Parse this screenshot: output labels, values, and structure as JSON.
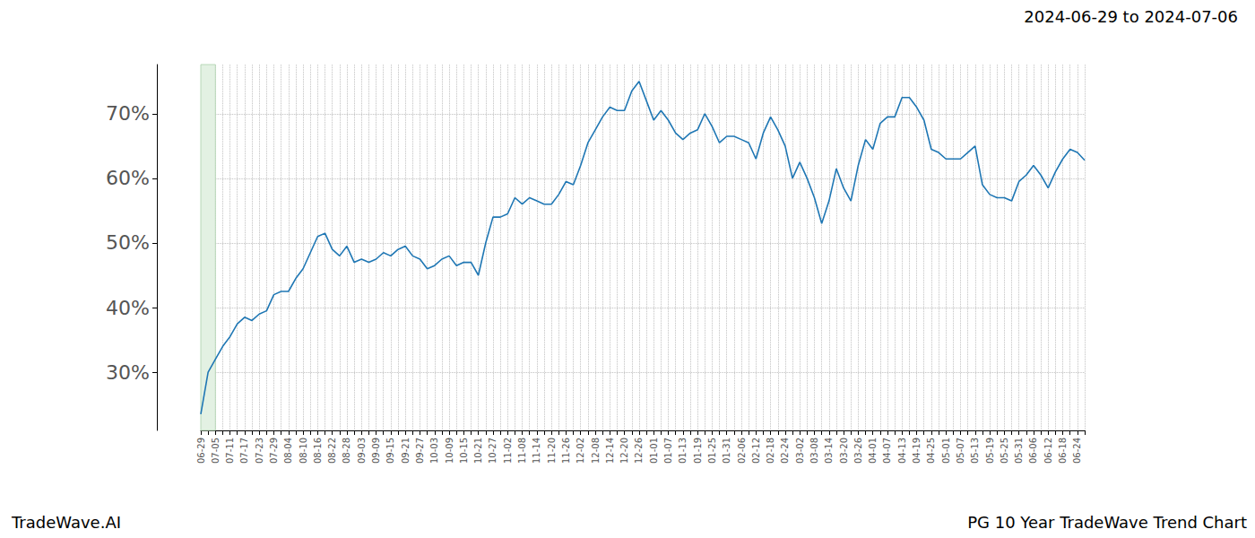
{
  "chart_data": {
    "type": "line",
    "title": "PG 10 Year TradeWave Trend Chart",
    "subtitle": "2024-06-29 to 2024-07-06",
    "annotations": [
      "TradeWave.AI"
    ],
    "highlight": {
      "from": "06-29",
      "to": "07-05",
      "color": "#e3f1e3"
    },
    "color": "#1f77b4",
    "grid": true,
    "categories": [
      "06-29",
      null,
      "07-05",
      null,
      "07-11",
      null,
      "07-17",
      null,
      "07-23",
      null,
      "07-29",
      null,
      "08-04",
      null,
      "08-10",
      null,
      "08-16",
      null,
      "08-22",
      null,
      "08-28",
      null,
      "09-03",
      null,
      "09-09",
      null,
      "09-15",
      null,
      "09-21",
      null,
      "09-27",
      null,
      "10-03",
      null,
      "10-09",
      null,
      "10-15",
      null,
      "10-21",
      null,
      "10-27",
      null,
      "11-02",
      null,
      "11-08",
      null,
      "11-14",
      null,
      "11-20",
      null,
      "11-26",
      null,
      "12-02",
      null,
      "12-08",
      null,
      "12-14",
      null,
      "12-20",
      null,
      "12-26",
      null,
      "01-01",
      null,
      "01-07",
      null,
      "01-13",
      null,
      "01-19",
      null,
      "01-25",
      null,
      "01-31",
      null,
      "02-06",
      null,
      "02-12",
      null,
      "02-18",
      null,
      "02-24",
      null,
      "03-02",
      null,
      "03-08",
      null,
      "03-14",
      null,
      "03-20",
      null,
      "03-26",
      null,
      "04-01",
      null,
      "04-07",
      null,
      "04-13",
      null,
      "04-19",
      null,
      "04-25",
      null,
      "05-01",
      null,
      "05-07",
      null,
      "05-13",
      null,
      "05-19",
      null,
      "05-25",
      null,
      "05-31",
      null,
      "06-06",
      null,
      "06-12",
      null,
      "06-18",
      null,
      "06-24",
      null
    ],
    "values": [
      23.5,
      30,
      32,
      34,
      35.5,
      37.5,
      38.5,
      38,
      39,
      39.5,
      42,
      42.5,
      42.5,
      44.5,
      46,
      48.5,
      51,
      51.5,
      49,
      48,
      49.5,
      47,
      47.5,
      47,
      47.5,
      48.5,
      48,
      49,
      49.5,
      48,
      47.5,
      46,
      46.5,
      47.5,
      48,
      46.5,
      47,
      47,
      45,
      50,
      54,
      54,
      54.5,
      57,
      56,
      57,
      56.5,
      56,
      56,
      57.5,
      59.5,
      59,
      62,
      65.5,
      67.5,
      69.5,
      71,
      70.5,
      70.5,
      73.5,
      75,
      72,
      69,
      70.5,
      69,
      67,
      66,
      67,
      67.5,
      70,
      68,
      65.5,
      66.5,
      66.5,
      66,
      65.5,
      63,
      67,
      69.5,
      67.5,
      65,
      60,
      62.5,
      60,
      57,
      53,
      56.5,
      61.5,
      58.5,
      56.5,
      62,
      66,
      64.5,
      68.5,
      69.5,
      69.5,
      72.5,
      72.5,
      71,
      69,
      64.5,
      64,
      63,
      63,
      63,
      64,
      65,
      59,
      57.5,
      57,
      57,
      56.5,
      59.5,
      60.5,
      62,
      60.5,
      58.5,
      61,
      63,
      64.5,
      64,
      62.8
    ],
    "ylim": [
      21,
      77.6
    ],
    "yticks": [
      {
        "value": 30,
        "label": "30%"
      },
      {
        "value": 40,
        "label": "40%"
      },
      {
        "value": 50,
        "label": "50%"
      },
      {
        "value": 60,
        "label": "60%"
      },
      {
        "value": 70,
        "label": "70%"
      }
    ]
  }
}
